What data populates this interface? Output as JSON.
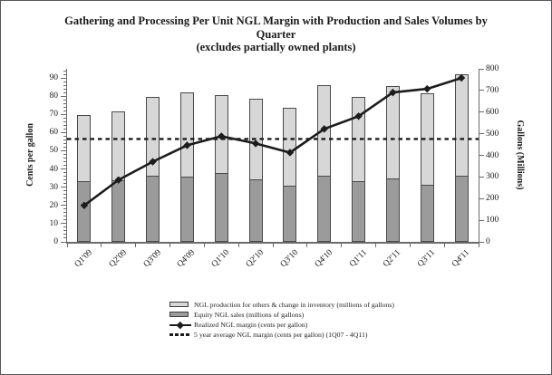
{
  "title": {
    "line1": "Gathering and Processing Per Unit NGL Margin with Production and Sales Volumes by",
    "line2": "Quarter",
    "line3": "(excludes partially owned plants)"
  },
  "chart_data": {
    "type": "bar",
    "subtype": "stacked-bar-with-line-overlay",
    "categories": [
      "Q1'09",
      "Q2'09",
      "Q3'09",
      "Q4'09",
      "Q1'10",
      "Q2'10",
      "Q3'10",
      "Q4'10",
      "Q1'11",
      "Q2'11",
      "Q3'11",
      "Q4'11"
    ],
    "series": [
      {
        "name": "Equity NGL sales (millions of gallons)",
        "type": "bar",
        "stack": "bottom",
        "axis": "right",
        "color": "#9b9b9b",
        "values": [
          280,
          285,
          305,
          300,
          320,
          290,
          260,
          305,
          280,
          295,
          265,
          305
        ]
      },
      {
        "name": "NGL production for others & change in inventory (millions of gallons)",
        "type": "bar",
        "stack": "top",
        "axis": "right",
        "color": "#d7d7d7",
        "values": [
          305,
          320,
          365,
          390,
          360,
          370,
          360,
          420,
          390,
          425,
          420,
          470
        ]
      },
      {
        "name": "Realized NGL margin (cents per gallon)",
        "type": "line",
        "marker": "diamond",
        "axis": "left",
        "color": "#1c1c1c",
        "values": [
          20,
          34,
          44,
          53,
          58,
          54,
          49,
          62,
          69,
          82,
          84,
          90
        ]
      },
      {
        "name": "5 year average NGL margin (cents per gallon) (1Q07 - 4Q11)",
        "type": "dashed-line",
        "axis": "left",
        "color": "#1c1c1c",
        "value": 56.5
      }
    ],
    "left_axis": {
      "title": "Cents per gallon",
      "min": 0,
      "max": 95,
      "tick_step": 10,
      "minor_tick_step": 2,
      "tick_labels": [
        "0",
        "10",
        "20",
        "30",
        "40",
        "50",
        "60",
        "70",
        "80",
        "90"
      ]
    },
    "right_axis": {
      "title": "Gallons (Millions)",
      "min": 0,
      "max": 800,
      "tick_step": 100,
      "tick_labels": [
        "0",
        "100",
        "200",
        "300",
        "400",
        "500",
        "600",
        "700",
        "800"
      ]
    },
    "grid": false,
    "legend_position": "bottom"
  },
  "legend": {
    "items": [
      {
        "marker": "bar-light",
        "color": "#d7d7d7",
        "label": "NGL production for others & change in inventory (millions of gallons)"
      },
      {
        "marker": "bar-dark",
        "color": "#9b9b9b",
        "label": "Equity NGL sales (millions of gallons)"
      },
      {
        "marker": "line-diamond",
        "color": "#1c1c1c",
        "label": "Realized NGL margin (cents per gallon)"
      },
      {
        "marker": "dashes",
        "color": "#1c1c1c",
        "label": "5 year average NGL margin (cents per gallon) (1Q07 - 4Q11)"
      }
    ]
  },
  "colors": {
    "bar_dark": "#9b9b9b",
    "bar_light": "#d7d7d7",
    "bar_border": "#4a4a4a",
    "line": "#1c1c1c",
    "axis": "#6b6b6b",
    "frame_border": "#57575a",
    "text": "#1a1a1a"
  }
}
